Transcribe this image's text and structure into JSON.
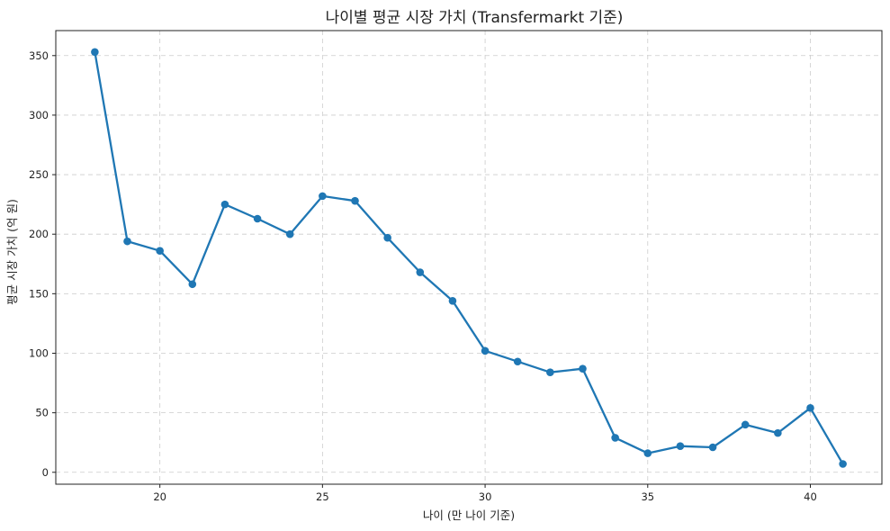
{
  "chart_data": {
    "type": "line",
    "title": "나이별 평균 시장 가치 (Transfermarkt 기준)",
    "xlabel": "나이 (만 나이 기준)",
    "ylabel": "평균 시장 가치 (억 원)",
    "xlim": [
      16.8,
      42.2
    ],
    "ylim": [
      -10,
      371
    ],
    "xticks": [
      20,
      25,
      30,
      35,
      40
    ],
    "yticks": [
      0,
      50,
      100,
      150,
      200,
      250,
      300,
      350
    ],
    "grid": true,
    "marker": "circle",
    "color": "#1f77b4",
    "series": [
      {
        "x": [
          18,
          19,
          20,
          21,
          22,
          23,
          24,
          25,
          26,
          27,
          28,
          29,
          30,
          31,
          32,
          33,
          34,
          35,
          36,
          37,
          38,
          39,
          40,
          41
        ],
        "y": [
          353,
          194,
          186,
          158,
          225,
          213,
          200,
          232,
          228,
          197,
          168,
          144,
          102,
          93,
          84,
          87,
          29,
          16,
          22,
          21,
          40,
          33,
          54,
          7
        ]
      }
    ]
  }
}
